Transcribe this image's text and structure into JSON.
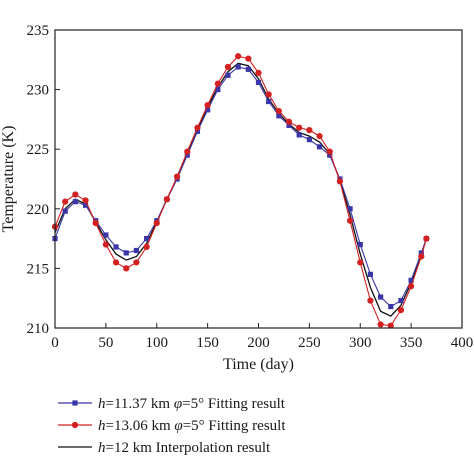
{
  "chart_data": {
    "type": "line",
    "xlabel": "Time (day)",
    "ylabel": "Temperature (K)",
    "xlim": [
      0,
      400
    ],
    "ylim": [
      210,
      235
    ],
    "xticks": [
      0,
      50,
      100,
      150,
      200,
      250,
      300,
      350,
      400
    ],
    "yticks": [
      210,
      215,
      220,
      225,
      230,
      235
    ],
    "grid": false,
    "legend_position": "below",
    "series": [
      {
        "name_parts": [
          {
            "text": "h",
            "italic": true
          },
          {
            "text": "=11.37 km ",
            "italic": false
          },
          {
            "text": "φ",
            "italic": true
          },
          {
            "text": "=5° Fitting result",
            "italic": false
          }
        ],
        "color": "#3a36a8",
        "marker": "square",
        "x": [
          0,
          10,
          20,
          30,
          40,
          50,
          60,
          70,
          80,
          90,
          100,
          110,
          120,
          130,
          140,
          150,
          160,
          170,
          180,
          190,
          200,
          210,
          220,
          230,
          240,
          250,
          260,
          270,
          280,
          290,
          300,
          310,
          320,
          330,
          340,
          350,
          360,
          365
        ],
        "y": [
          217.5,
          219.8,
          220.6,
          220.3,
          219.0,
          217.8,
          216.8,
          216.3,
          216.5,
          217.5,
          219.0,
          220.8,
          222.5,
          224.5,
          226.5,
          228.3,
          230.0,
          231.2,
          231.9,
          231.7,
          230.6,
          229.0,
          227.8,
          227.0,
          226.2,
          225.8,
          225.2,
          224.5,
          222.5,
          220.0,
          217.0,
          214.5,
          212.6,
          211.8,
          212.3,
          214.0,
          216.3,
          217.5
        ]
      },
      {
        "name_parts": [
          {
            "text": "h",
            "italic": true
          },
          {
            "text": "=13.06 km ",
            "italic": false
          },
          {
            "text": "φ",
            "italic": true
          },
          {
            "text": "=5° Fitting result",
            "italic": false
          }
        ],
        "color": "#d42020",
        "marker": "circle",
        "x": [
          0,
          10,
          20,
          30,
          40,
          50,
          60,
          70,
          80,
          90,
          100,
          110,
          120,
          130,
          140,
          150,
          160,
          170,
          180,
          190,
          200,
          210,
          220,
          230,
          240,
          250,
          260,
          270,
          280,
          290,
          300,
          310,
          320,
          330,
          340,
          350,
          360,
          365
        ],
        "y": [
          218.5,
          220.6,
          221.2,
          220.7,
          218.8,
          217.0,
          215.5,
          215.0,
          215.5,
          216.8,
          218.8,
          220.8,
          222.7,
          224.8,
          226.8,
          228.7,
          230.5,
          231.9,
          232.8,
          232.6,
          231.4,
          229.6,
          228.2,
          227.3,
          226.8,
          226.6,
          226.1,
          224.8,
          222.3,
          219.0,
          215.5,
          212.3,
          210.3,
          210.2,
          211.5,
          213.5,
          216.0,
          217.5
        ]
      },
      {
        "name_parts": [
          {
            "text": "h",
            "italic": true
          },
          {
            "text": "=12 km Interpolation result",
            "italic": false
          }
        ],
        "color": "#111111",
        "marker": "none",
        "x": [
          0,
          10,
          20,
          30,
          40,
          50,
          60,
          70,
          80,
          90,
          100,
          110,
          120,
          130,
          140,
          150,
          160,
          170,
          180,
          190,
          200,
          210,
          220,
          230,
          240,
          250,
          260,
          270,
          280,
          290,
          300,
          310,
          320,
          330,
          340,
          350,
          360,
          365
        ],
        "y": [
          218.0,
          220.0,
          220.8,
          220.4,
          218.9,
          217.4,
          216.2,
          215.7,
          216.0,
          217.1,
          218.9,
          220.8,
          222.6,
          224.6,
          226.6,
          228.5,
          230.2,
          231.5,
          232.2,
          232.0,
          230.9,
          229.2,
          228.0,
          227.1,
          226.4,
          226.1,
          225.6,
          224.6,
          222.4,
          219.5,
          216.2,
          213.4,
          211.4,
          211.0,
          211.9,
          213.8,
          216.2,
          217.5
        ]
      }
    ]
  }
}
